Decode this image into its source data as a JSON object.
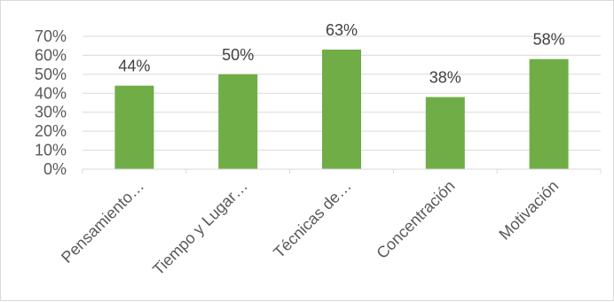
{
  "chart_data": {
    "type": "bar",
    "title": "",
    "xlabel": "",
    "ylabel": "",
    "categories": [
      "Pensamiento…",
      "Tiempo y Lugar…",
      "Técnicas de…",
      "Concentración",
      "Motivación"
    ],
    "values": [
      44,
      50,
      63,
      38,
      58
    ],
    "data_labels": [
      "44%",
      "50%",
      "63%",
      "38%",
      "58%"
    ],
    "ylim": [
      0,
      70
    ],
    "yticks": [
      0,
      10,
      20,
      30,
      40,
      50,
      60,
      70
    ],
    "ytick_labels": [
      "0%",
      "10%",
      "20%",
      "30%",
      "40%",
      "50%",
      "60%",
      "70%"
    ],
    "grid": true,
    "legend": "none",
    "bar_color": "#70ad47",
    "grid_color": "#d9d9d9"
  }
}
